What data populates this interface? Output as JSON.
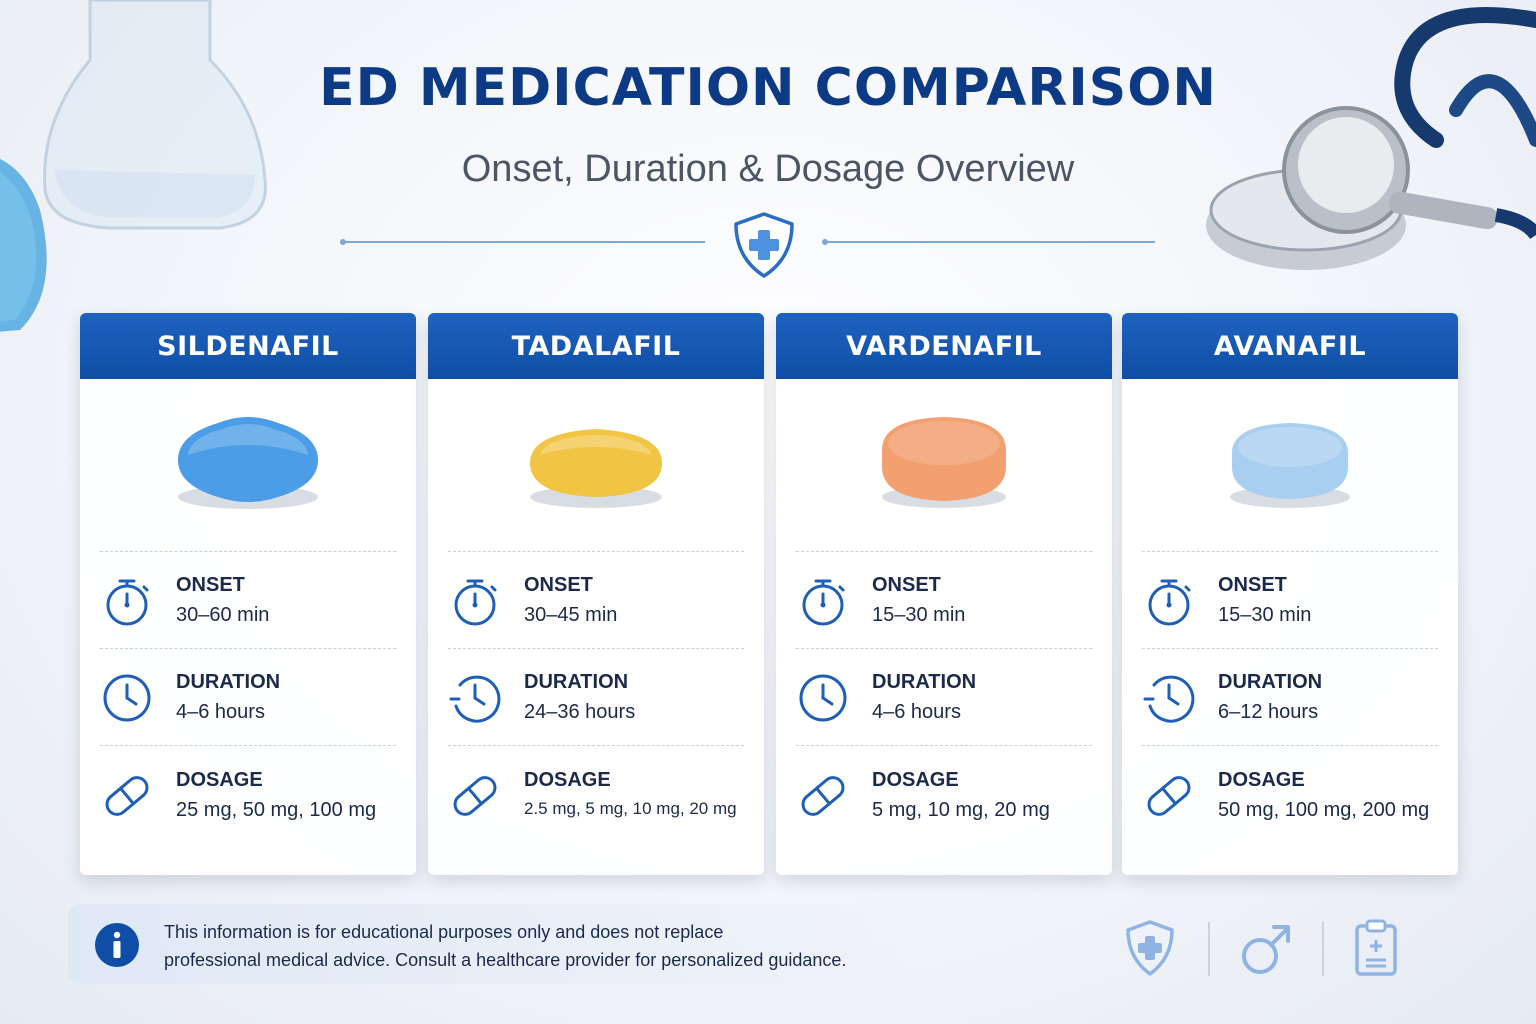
{
  "header": {
    "title": "ED MEDICATION COMPARISON",
    "subtitle": "Onset, Duration & Dosage Overview"
  },
  "labels": {
    "onset": "ONSET",
    "duration": "DURATION",
    "dosage": "DOSAGE"
  },
  "medications": [
    {
      "name": "SILDENAFIL",
      "pill_color": "#4a9de6",
      "onset": "30–60 min",
      "duration": "4–6 hours",
      "dosage": "25 mg, 50 mg, 100 mg"
    },
    {
      "name": "TADALAFIL",
      "pill_color": "#f2c443",
      "onset": "30–45 min",
      "duration": "24–36 hours",
      "dosage": "2.5 mg, 5 mg, 10 mg, 20 mg"
    },
    {
      "name": "VARDENAFIL",
      "pill_color": "#f2a070",
      "onset": "15–30 min",
      "duration": "4–6 hours",
      "dosage": "5 mg, 10 mg, 20 mg"
    },
    {
      "name": "AVANAFIL",
      "pill_color": "#a9cff0",
      "onset": "15–30 min",
      "duration": "6–12 hours",
      "dosage": "50 mg, 100 mg, 200 mg"
    }
  ],
  "disclaimer": {
    "line1": "This information is for educational purposes only and does not replace",
    "line2": "professional medical advice. Consult a healthcare provider for personalized guidance."
  },
  "colors": {
    "brand": "#0f4ea6",
    "title": "#0d3a85",
    "icon": "#1f5fb8"
  },
  "icons": [
    "shield-plus-icon",
    "stopwatch-icon",
    "clock-icon",
    "capsule-icon",
    "info-icon",
    "male-symbol-icon",
    "clipboard-icon"
  ]
}
